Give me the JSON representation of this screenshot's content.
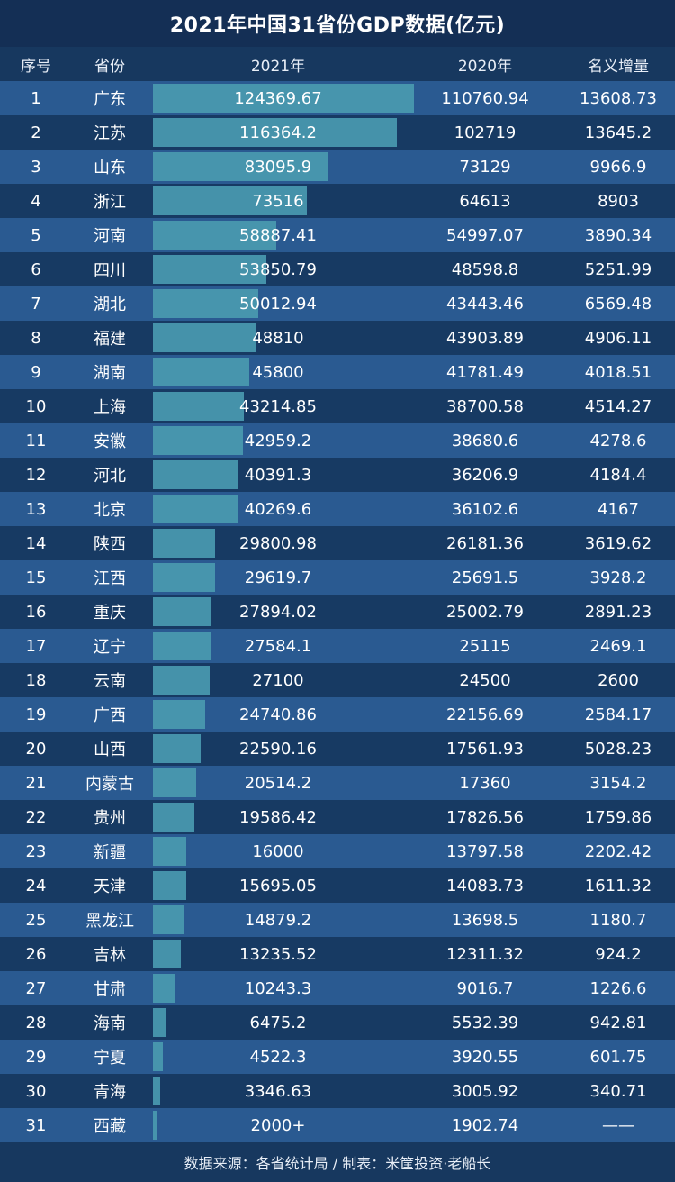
{
  "title": "2021年中国31省份GDP数据(亿元)",
  "headers": [
    "序号",
    "省份",
    "2021年",
    "2020年",
    "名义增量"
  ],
  "footer": "数据来源：各省统计局 / 制表：米筐投资·老船长",
  "colors": {
    "bar": "#4a9ab0",
    "row_light": "#2a5a91",
    "row_dark": "#173a63",
    "background": "#16345c"
  },
  "chart_data": {
    "type": "table",
    "rows": [
      {
        "idx": "1",
        "province": "广东",
        "gdp2021": "124369.67",
        "gdp2020": "110760.94",
        "increase": "13608.73"
      },
      {
        "idx": "2",
        "province": "江苏",
        "gdp2021": "116364.2",
        "gdp2020": "102719",
        "increase": "13645.2"
      },
      {
        "idx": "3",
        "province": "山东",
        "gdp2021": "83095.9",
        "gdp2020": "73129",
        "increase": "9966.9"
      },
      {
        "idx": "4",
        "province": "浙江",
        "gdp2021": "73516",
        "gdp2020": "64613",
        "increase": "8903"
      },
      {
        "idx": "5",
        "province": "河南",
        "gdp2021": "58887.41",
        "gdp2020": "54997.07",
        "increase": "3890.34"
      },
      {
        "idx": "6",
        "province": "四川",
        "gdp2021": "53850.79",
        "gdp2020": "48598.8",
        "increase": "5251.99"
      },
      {
        "idx": "7",
        "province": "湖北",
        "gdp2021": "50012.94",
        "gdp2020": "43443.46",
        "increase": "6569.48"
      },
      {
        "idx": "8",
        "province": "福建",
        "gdp2021": "48810",
        "gdp2020": "43903.89",
        "increase": "4906.11"
      },
      {
        "idx": "9",
        "province": "湖南",
        "gdp2021": "45800",
        "gdp2020": "41781.49",
        "increase": "4018.51"
      },
      {
        "idx": "10",
        "province": "上海",
        "gdp2021": "43214.85",
        "gdp2020": "38700.58",
        "increase": "4514.27"
      },
      {
        "idx": "11",
        "province": "安徽",
        "gdp2021": "42959.2",
        "gdp2020": "38680.6",
        "increase": "4278.6"
      },
      {
        "idx": "12",
        "province": "河北",
        "gdp2021": "40391.3",
        "gdp2020": "36206.9",
        "increase": "4184.4"
      },
      {
        "idx": "13",
        "province": "北京",
        "gdp2021": "40269.6",
        "gdp2020": "36102.6",
        "increase": "4167"
      },
      {
        "idx": "14",
        "province": "陕西",
        "gdp2021": "29800.98",
        "gdp2020": "26181.36",
        "increase": "3619.62"
      },
      {
        "idx": "15",
        "province": "江西",
        "gdp2021": "29619.7",
        "gdp2020": "25691.5",
        "increase": "3928.2"
      },
      {
        "idx": "16",
        "province": "重庆",
        "gdp2021": "27894.02",
        "gdp2020": "25002.79",
        "increase": "2891.23"
      },
      {
        "idx": "17",
        "province": "辽宁",
        "gdp2021": "27584.1",
        "gdp2020": "25115",
        "increase": "2469.1"
      },
      {
        "idx": "18",
        "province": "云南",
        "gdp2021": "27100",
        "gdp2020": "24500",
        "increase": "2600"
      },
      {
        "idx": "19",
        "province": "广西",
        "gdp2021": "24740.86",
        "gdp2020": "22156.69",
        "increase": "2584.17"
      },
      {
        "idx": "20",
        "province": "山西",
        "gdp2021": "22590.16",
        "gdp2020": "17561.93",
        "increase": "5028.23"
      },
      {
        "idx": "21",
        "province": "内蒙古",
        "gdp2021": "20514.2",
        "gdp2020": "17360",
        "increase": "3154.2"
      },
      {
        "idx": "22",
        "province": "贵州",
        "gdp2021": "19586.42",
        "gdp2020": "17826.56",
        "increase": "1759.86"
      },
      {
        "idx": "23",
        "province": "新疆",
        "gdp2021": "16000",
        "gdp2020": "13797.58",
        "increase": "2202.42"
      },
      {
        "idx": "24",
        "province": "天津",
        "gdp2021": "15695.05",
        "gdp2020": "14083.73",
        "increase": "1611.32"
      },
      {
        "idx": "25",
        "province": "黑龙江",
        "gdp2021": "14879.2",
        "gdp2020": "13698.5",
        "increase": "1180.7"
      },
      {
        "idx": "26",
        "province": "吉林",
        "gdp2021": "13235.52",
        "gdp2020": "12311.32",
        "increase": "924.2"
      },
      {
        "idx": "27",
        "province": "甘肃",
        "gdp2021": "10243.3",
        "gdp2020": "9016.7",
        "increase": "1226.6"
      },
      {
        "idx": "28",
        "province": "海南",
        "gdp2021": "6475.2",
        "gdp2020": "5532.39",
        "increase": "942.81"
      },
      {
        "idx": "29",
        "province": "宁夏",
        "gdp2021": "4522.3",
        "gdp2020": "3920.55",
        "increase": "601.75"
      },
      {
        "idx": "30",
        "province": "青海",
        "gdp2021": "3346.63",
        "gdp2020": "3005.92",
        "increase": "340.71"
      },
      {
        "idx": "31",
        "province": "西藏",
        "gdp2021": "2000+",
        "gdp2020": "1902.74",
        "increase": "——"
      }
    ]
  }
}
